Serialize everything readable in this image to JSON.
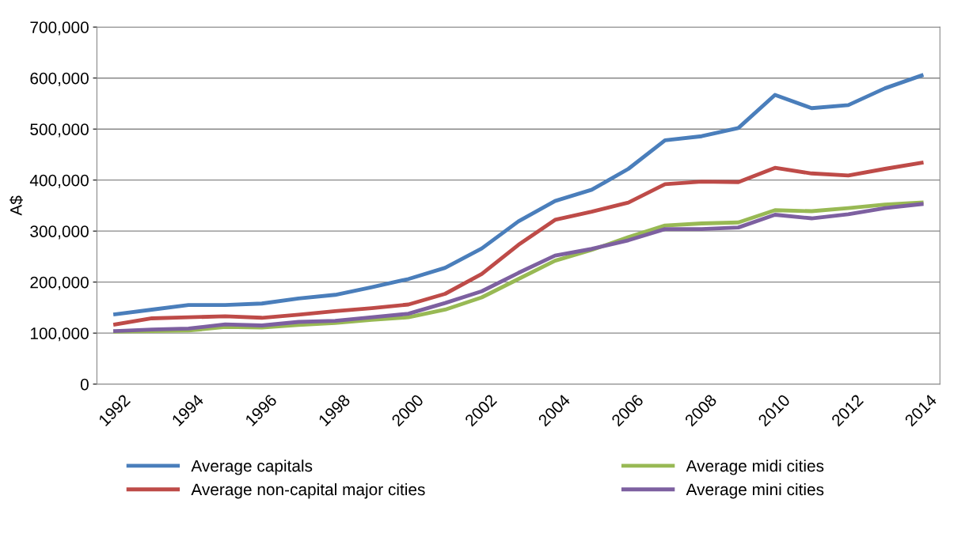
{
  "chart_data": {
    "type": "line",
    "ylabel": "A$",
    "categories": [
      "1992",
      null,
      "1994",
      null,
      "1996",
      null,
      "1998",
      null,
      "2000",
      null,
      "2002",
      null,
      "2004",
      null,
      "2006",
      null,
      "2008",
      null,
      "2010",
      null,
      "2012",
      null,
      "2014"
    ],
    "series": [
      {
        "name": "Average capitals",
        "color": "#4a7ebb",
        "values": [
          137000,
          146000,
          155000,
          155000,
          158000,
          168000,
          175000,
          190000,
          206000,
          228000,
          266000,
          319000,
          359000,
          381000,
          422000,
          478000,
          486000,
          502000,
          567000,
          541000,
          547000,
          580000,
          605000
        ]
      },
      {
        "name": "Average non-capital major cities",
        "color": "#be4b48",
        "values": [
          117000,
          129000,
          131000,
          133000,
          130000,
          136000,
          143000,
          149000,
          156000,
          177000,
          216000,
          273000,
          322000,
          338000,
          356000,
          392000,
          397000,
          396000,
          424000,
          413000,
          409000,
          422000,
          434000
        ]
      },
      {
        "name": "Average midi cities",
        "color": "#98b954",
        "values": [
          103000,
          104000,
          105000,
          112000,
          111000,
          116000,
          120000,
          126000,
          131000,
          146000,
          170000,
          206000,
          242000,
          263000,
          288000,
          311000,
          315000,
          317000,
          341000,
          339000,
          345000,
          352000,
          356000
        ]
      },
      {
        "name": "Average mini cities",
        "color": "#7d60a0",
        "values": [
          104000,
          107000,
          109000,
          117000,
          115000,
          122000,
          124000,
          131000,
          138000,
          159000,
          182000,
          218000,
          252000,
          265000,
          282000,
          304000,
          304000,
          307000,
          332000,
          325000,
          333000,
          345000,
          353000
        ]
      }
    ],
    "ylim": [
      0,
      700000
    ],
    "yticks": [
      {
        "value": 0,
        "label": "0"
      },
      {
        "value": 100000,
        "label": "100,000"
      },
      {
        "value": 200000,
        "label": "200,000"
      },
      {
        "value": 300000,
        "label": "300,000"
      },
      {
        "value": 400000,
        "label": "400,000"
      },
      {
        "value": 500000,
        "label": "500,000"
      },
      {
        "value": 600000,
        "label": "600,000"
      },
      {
        "value": 700000,
        "label": "700,000"
      }
    ],
    "grid": "y",
    "legend": "bottom",
    "marker": "none",
    "line_style": "solid"
  }
}
